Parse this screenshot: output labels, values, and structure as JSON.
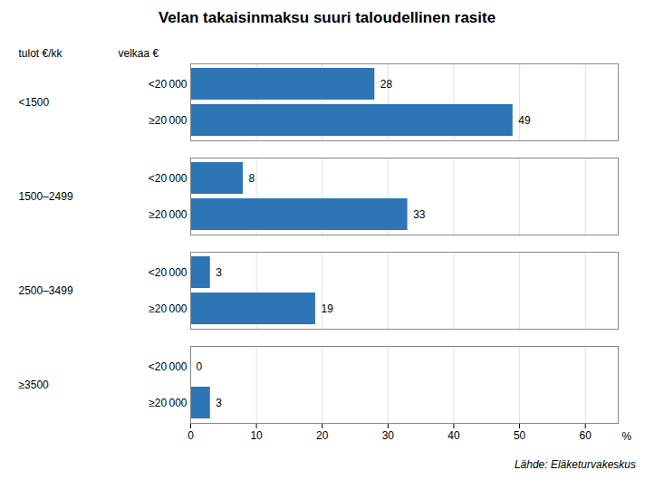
{
  "chart_data": {
    "type": "bar",
    "orientation": "horizontal",
    "title": "Velan takaisinmaksu suuri taloudellinen rasite",
    "caption": "Lähde: Eläketurvakeskus",
    "annotations": [
      "tulot €/kk"
    ],
    "xlabel": "%",
    "ylabel": "velkaa €",
    "categories": [
      "<1500",
      "1500–2499",
      "2500–3499",
      "≥3500"
    ],
    "series": [
      {
        "name": "<20 000",
        "color": "#2E75B6",
        "values": [
          28,
          8,
          3,
          0
        ]
      },
      {
        "name": "≥20 000",
        "color": "#2E75B6",
        "values": [
          49,
          33,
          19,
          3
        ]
      }
    ],
    "xlim": [
      0,
      65
    ],
    "xticks": [
      0,
      10,
      20,
      30,
      40,
      50,
      60
    ],
    "grid": true,
    "data_labels": true
  }
}
